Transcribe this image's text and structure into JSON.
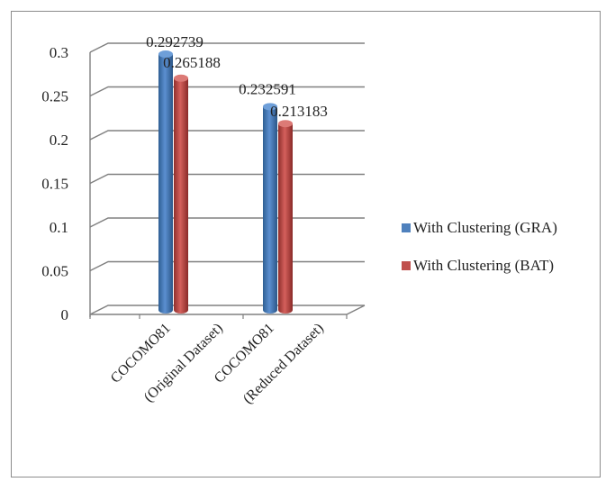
{
  "chart_data": {
    "type": "bar",
    "style": "3d-cylinder",
    "categories": [
      [
        "COCOMO81",
        "(Original Dataset)"
      ],
      [
        "COCOMO81",
        "(Reduced Dataset)"
      ]
    ],
    "series": [
      {
        "name": "With Clustering (GRA)",
        "color": "#4f81bd",
        "values": [
          0.292739,
          0.232591
        ],
        "labels": [
          "0.292739",
          "0.232591"
        ]
      },
      {
        "name": "With Clustering (BAT)",
        "color": "#c0504d",
        "values": [
          0.265188,
          0.213183
        ],
        "labels": [
          "0.265188",
          "0.213183"
        ]
      }
    ],
    "y_ticks": [
      "0",
      "0.05",
      "0.1",
      "0.15",
      "0.2",
      "0.25",
      "0.3"
    ],
    "ylim": [
      0,
      0.3
    ],
    "grid": true,
    "legend_position": "right",
    "title": "",
    "xlabel": "",
    "ylabel": ""
  }
}
